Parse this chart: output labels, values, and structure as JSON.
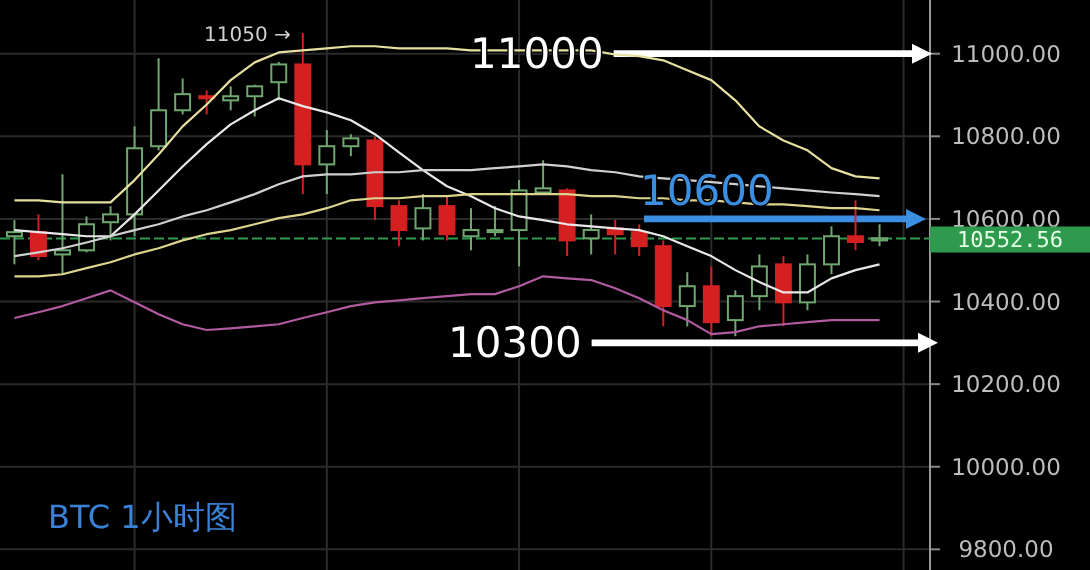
{
  "chart_data": {
    "type": "candlestick",
    "title": "BTC 1小时图",
    "categories": [
      null,
      null,
      null,
      null,
      null,
      null,
      null,
      null,
      null,
      null,
      null,
      null,
      null,
      null,
      null,
      null,
      null,
      null,
      null,
      null,
      null,
      null,
      null,
      null,
      null,
      null,
      null,
      null,
      null,
      null,
      null,
      null,
      null,
      null,
      null,
      null,
      null
    ],
    "ohlc": [
      [
        10558,
        10597,
        10490,
        10568
      ],
      [
        10568,
        10611,
        10500,
        10510
      ],
      [
        10514,
        10708,
        10466,
        10524
      ],
      [
        10524,
        10606,
        10519,
        10587
      ],
      [
        10592,
        10631,
        10548,
        10611
      ],
      [
        10611,
        10824,
        10558,
        10771
      ],
      [
        10776,
        10989,
        10766,
        10863
      ],
      [
        10863,
        10940,
        10853,
        10902
      ],
      [
        10897,
        10911,
        10853,
        10892
      ],
      [
        10887,
        10921,
        10863,
        10897
      ],
      [
        10897,
        10925,
        10848,
        10921
      ],
      [
        10931,
        10980,
        10887,
        10974
      ],
      [
        10974,
        11050,
        10660,
        10732
      ],
      [
        10732,
        10815,
        10660,
        10776
      ],
      [
        10776,
        10805,
        10752,
        10795
      ],
      [
        10790,
        10800,
        10597,
        10631
      ],
      [
        10631,
        10645,
        10534,
        10573
      ],
      [
        10577,
        10660,
        10548,
        10626
      ],
      [
        10631,
        10655,
        10548,
        10563
      ],
      [
        10558,
        10626,
        10524,
        10573
      ],
      [
        10568,
        10631,
        10558,
        10573
      ],
      [
        10573,
        10694,
        10485,
        10669
      ],
      [
        10664,
        10742,
        10660,
        10674
      ],
      [
        10669,
        10674,
        10510,
        10548
      ],
      [
        10553,
        10611,
        10514,
        10573
      ],
      [
        10577,
        10597,
        10514,
        10563
      ],
      [
        10568,
        10587,
        10510,
        10534
      ],
      [
        10534,
        10548,
        10340,
        10389
      ],
      [
        10389,
        10471,
        10340,
        10437
      ],
      [
        10437,
        10485,
        10316,
        10350
      ],
      [
        10355,
        10427,
        10316,
        10413
      ],
      [
        10413,
        10514,
        10379,
        10485
      ],
      [
        10490,
        10510,
        10340,
        10398
      ],
      [
        10398,
        10514,
        10379,
        10490
      ],
      [
        10490,
        10582,
        10466,
        10558
      ],
      [
        10558,
        10645,
        10524,
        10544
      ],
      [
        10548,
        10587,
        10534,
        10553
      ]
    ],
    "colors": [
      "#6fa86f",
      "#d42020",
      "#6fa86f",
      "#6fa86f",
      "#6fa86f",
      "#6fa86f",
      "#6fa86f",
      "#6fa86f",
      "#d42020",
      "#6fa86f",
      "#6fa86f",
      "#6fa86f",
      "#d42020",
      "#6fa86f",
      "#6fa86f",
      "#d42020",
      "#d42020",
      "#6fa86f",
      "#d42020",
      "#6fa86f",
      "#6fa86f",
      "#6fa86f",
      "#6fa86f",
      "#d42020",
      "#6fa86f",
      "#d42020",
      "#d42020",
      "#d42020",
      "#6fa86f",
      "#d42020",
      "#6fa86f",
      "#6fa86f",
      "#d42020",
      "#6fa86f",
      "#6fa86f",
      "#d42020",
      "#6fa86f"
    ],
    "series": [
      {
        "type": "line",
        "color": "#e6dfa0",
        "values": [
          10645,
          10645,
          10640,
          10640,
          10640,
          10694,
          10756,
          10824,
          10877,
          10936,
          10979,
          11003,
          11008,
          11013,
          11018,
          11018,
          11013,
          11013,
          11013,
          11008,
          11008,
          11008,
          11008,
          11008,
          11008,
          10998,
          10994,
          10984,
          10960,
          10936,
          10887,
          10824,
          10790,
          10766,
          10723,
          10703,
          10698
        ]
      },
      {
        "type": "line",
        "color": "#e8e8e8",
        "values": [
          10573,
          10568,
          10563,
          10558,
          10558,
          10611,
          10669,
          10727,
          10781,
          10829,
          10863,
          10892,
          10873,
          10858,
          10839,
          10805,
          10761,
          10718,
          10679,
          10655,
          10626,
          10606,
          10597,
          10587,
          10582,
          10577,
          10573,
          10558,
          10534,
          10510,
          10476,
          10447,
          10422,
          10422,
          10456,
          10476,
          10490
        ]
      },
      {
        "type": "line",
        "color": "#d0d0d0",
        "values": [
          10510,
          10519,
          10529,
          10543,
          10558,
          10573,
          10587,
          10606,
          10621,
          10640,
          10660,
          10684,
          10703,
          10708,
          10708,
          10713,
          10713,
          10718,
          10718,
          10718,
          10723,
          10727,
          10732,
          10727,
          10718,
          10713,
          10703,
          10698,
          10694,
          10689,
          10684,
          10679,
          10674,
          10669,
          10664,
          10660,
          10655
        ]
      },
      {
        "type": "line",
        "color": "#dcd48c",
        "values": [
          10461,
          10461,
          10466,
          10481,
          10495,
          10514,
          10529,
          10548,
          10563,
          10573,
          10587,
          10602,
          10611,
          10626,
          10645,
          10650,
          10650,
          10655,
          10655,
          10660,
          10660,
          10660,
          10660,
          10660,
          10655,
          10655,
          10650,
          10650,
          10645,
          10645,
          10640,
          10635,
          10635,
          10631,
          10626,
          10626,
          10621
        ]
      },
      {
        "type": "line",
        "color": "#b05aa0",
        "values": [
          10360,
          10374,
          10389,
          10408,
          10427,
          10398,
          10369,
          10345,
          10331,
          10335,
          10340,
          10345,
          10360,
          10374,
          10389,
          10398,
          10403,
          10408,
          10413,
          10418,
          10418,
          10437,
          10461,
          10456,
          10452,
          10432,
          10408,
          10379,
          10355,
          10321,
          10326,
          10340,
          10345,
          10350,
          10355,
          10355,
          10355
        ]
      }
    ],
    "ylim": [
      9750,
      11130
    ],
    "yticks": [
      {
        "value": 9800,
        "label": "9800.00"
      },
      {
        "value": 10000,
        "label": "10000.00"
      },
      {
        "value": 10200,
        "label": "10200.00"
      },
      {
        "value": 10400,
        "label": "10400.00"
      },
      {
        "value": 10600,
        "label": "10600.00"
      },
      {
        "value": 10800,
        "label": "10800.00"
      },
      {
        "value": 11000,
        "label": "11000.00"
      }
    ],
    "tick_labels": "y",
    "grid": true,
    "ref_lines": [
      {
        "axis": "y",
        "value": 11000,
        "label": "11000",
        "color": "#ffffff"
      },
      {
        "axis": "y",
        "value": 10600,
        "label": "10600",
        "color": "#3b8ee0"
      },
      {
        "axis": "y",
        "value": 10300,
        "label": "10300",
        "color": "#ffffff"
      },
      {
        "axis": "y",
        "value": 10552.56,
        "label": "10552.56",
        "color": "#2e9a4e",
        "line_style": "dashed"
      }
    ],
    "annotations": [
      "11050 →"
    ]
  }
}
